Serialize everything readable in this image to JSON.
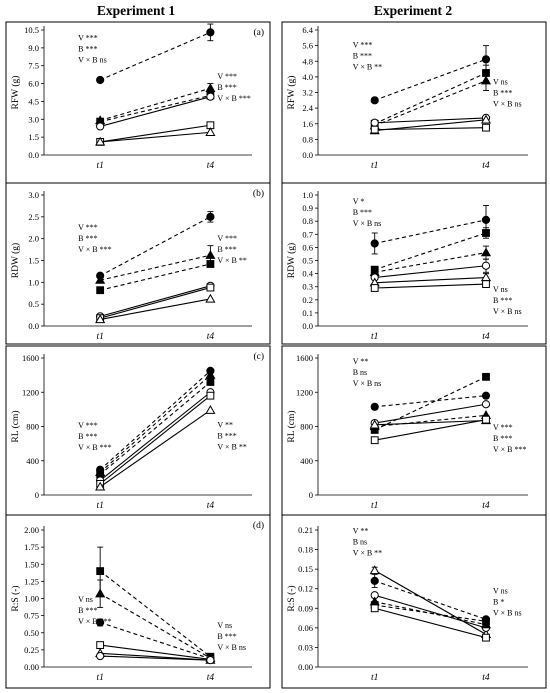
{
  "figure": {
    "columns": [
      "Experiment 1",
      "Experiment 2"
    ]
  },
  "chart_data": [
    {
      "id": "a1",
      "type": "line",
      "letter": "(a)",
      "ylabel": "RFW (g)",
      "ylim": [
        0,
        10.5
      ],
      "yticks": [
        "0.0",
        "1.5",
        "3.0",
        "4.5",
        "6.0",
        "7.5",
        "9.0",
        "10.5"
      ],
      "x": [
        "t1",
        "t4"
      ],
      "series": [
        {
          "marker": "filled-circle",
          "dashed": true,
          "values": [
            6.3,
            10.3
          ],
          "err": [
            0,
            0.7
          ]
        },
        {
          "marker": "filled-triangle",
          "dashed": true,
          "values": [
            2.9,
            5.6
          ],
          "err": [
            0,
            0.4
          ]
        },
        {
          "marker": "filled-square",
          "dashed": true,
          "values": [
            2.8,
            5.0
          ],
          "err": [
            0,
            0
          ]
        },
        {
          "marker": "open-circle",
          "dashed": false,
          "values": [
            2.4,
            4.9
          ],
          "err": [
            0,
            0
          ]
        },
        {
          "marker": "open-square",
          "dashed": false,
          "values": [
            1.1,
            2.5
          ],
          "err": [
            0,
            0
          ]
        },
        {
          "marker": "open-triangle",
          "dashed": false,
          "values": [
            1.1,
            1.9
          ],
          "err": [
            0,
            0
          ]
        }
      ],
      "stats": [
        {
          "anchor": "t1",
          "yval": 9.6,
          "lines": [
            "V ***",
            "B ***",
            "V × B ns"
          ]
        },
        {
          "anchor": "t4",
          "yval": 6.4,
          "lines": [
            "V ***",
            "B ***",
            "V × B ***"
          ]
        }
      ]
    },
    {
      "id": "a2",
      "type": "line",
      "letter": "",
      "ylabel": "RFW (g)",
      "ylim": [
        0,
        6.4
      ],
      "yticks": [
        "0.0",
        "0.8",
        "1.6",
        "2.4",
        "3.2",
        "4.0",
        "4.8",
        "5.6",
        "6.4"
      ],
      "x": [
        "t1",
        "t4"
      ],
      "series": [
        {
          "marker": "filled-circle",
          "dashed": true,
          "values": [
            2.8,
            4.9
          ],
          "err": [
            0,
            0.7
          ]
        },
        {
          "marker": "filled-square",
          "dashed": true,
          "values": [
            1.6,
            4.2
          ],
          "err": [
            0,
            0.4
          ]
        },
        {
          "marker": "filled-triangle",
          "dashed": true,
          "values": [
            1.5,
            3.8
          ],
          "err": [
            0,
            0.5
          ]
        },
        {
          "marker": "open-circle",
          "dashed": false,
          "values": [
            1.65,
            1.9
          ],
          "err": [
            0,
            0
          ]
        },
        {
          "marker": "open-triangle",
          "dashed": false,
          "values": [
            1.25,
            1.8
          ],
          "err": [
            0,
            0
          ]
        },
        {
          "marker": "open-square",
          "dashed": false,
          "values": [
            1.3,
            1.4
          ],
          "err": [
            0,
            0
          ]
        }
      ],
      "stats": [
        {
          "anchor": "t1",
          "yval": 5.5,
          "lines": [
            "V ***",
            "B ***",
            "V × B **"
          ]
        },
        {
          "anchor": "t4",
          "yval": 3.6,
          "lines": [
            "V ns",
            "B ***",
            "V × B ns"
          ]
        }
      ]
    },
    {
      "id": "b1",
      "type": "line",
      "letter": "(b)",
      "ylabel": "RDW (g)",
      "ylim": [
        0,
        3.0
      ],
      "yticks": [
        "0.0",
        "0.5",
        "1.0",
        "1.5",
        "2.0",
        "2.5",
        "3.0"
      ],
      "x": [
        "t1",
        "t4"
      ],
      "series": [
        {
          "marker": "filled-circle",
          "dashed": true,
          "values": [
            1.15,
            2.5
          ],
          "err": [
            0,
            0.12
          ]
        },
        {
          "marker": "filled-triangle",
          "dashed": true,
          "values": [
            1.05,
            1.62
          ],
          "err": [
            0,
            0.22
          ]
        },
        {
          "marker": "filled-square",
          "dashed": true,
          "values": [
            0.82,
            1.42
          ],
          "err": [
            0,
            0
          ]
        },
        {
          "marker": "open-circle",
          "dashed": false,
          "values": [
            0.22,
            0.92
          ],
          "err": [
            0,
            0
          ]
        },
        {
          "marker": "open-square",
          "dashed": false,
          "values": [
            0.18,
            0.88
          ],
          "err": [
            0,
            0
          ]
        },
        {
          "marker": "open-triangle",
          "dashed": false,
          "values": [
            0.15,
            0.62
          ],
          "err": [
            0,
            0
          ]
        }
      ],
      "stats": [
        {
          "anchor": "t1",
          "yval": 2.2,
          "lines": [
            "V ***",
            "B ***",
            "V × B ***"
          ]
        },
        {
          "anchor": "t4",
          "yval": 1.95,
          "lines": [
            "V ***",
            "B ***",
            "V × B **"
          ]
        }
      ]
    },
    {
      "id": "b2",
      "type": "line",
      "letter": "",
      "ylabel": "RDW (g)",
      "ylim": [
        0,
        1.0
      ],
      "yticks": [
        "0.0",
        "0.1",
        "0.2",
        "0.3",
        "0.4",
        "0.5",
        "0.6",
        "0.7",
        "0.8",
        "0.9",
        "1.0"
      ],
      "x": [
        "t1",
        "t4"
      ],
      "series": [
        {
          "marker": "filled-circle",
          "dashed": true,
          "values": [
            0.63,
            0.81
          ],
          "err": [
            0.08,
            0.11
          ]
        },
        {
          "marker": "filled-square",
          "dashed": true,
          "values": [
            0.43,
            0.71
          ],
          "err": [
            0,
            0.04
          ]
        },
        {
          "marker": "filled-triangle",
          "dashed": true,
          "values": [
            0.41,
            0.56
          ],
          "err": [
            0,
            0.05
          ]
        },
        {
          "marker": "open-circle",
          "dashed": false,
          "values": [
            0.37,
            0.46
          ],
          "err": [
            0,
            0.05
          ]
        },
        {
          "marker": "open-triangle",
          "dashed": false,
          "values": [
            0.33,
            0.37
          ],
          "err": [
            0,
            0.03
          ]
        },
        {
          "marker": "open-square",
          "dashed": false,
          "values": [
            0.29,
            0.32
          ],
          "err": [
            0,
            0
          ]
        }
      ],
      "stats": [
        {
          "anchor": "t1",
          "yval": 0.93,
          "lines": [
            "V *",
            "B ***",
            "V × B ns"
          ]
        },
        {
          "anchor": "t4",
          "yval": 0.26,
          "lines": [
            "V ns",
            "B ***",
            "V × B ns"
          ]
        }
      ]
    },
    {
      "id": "c1",
      "type": "line",
      "letter": "(c)",
      "ylabel": "RL (cm)",
      "ylim": [
        0,
        1600
      ],
      "yticks": [
        "0",
        "400",
        "800",
        "1200",
        "1600"
      ],
      "x": [
        "t1",
        "t4"
      ],
      "series": [
        {
          "marker": "filled-circle",
          "dashed": true,
          "values": [
            295,
            1450
          ],
          "err": [
            0,
            0
          ]
        },
        {
          "marker": "filled-triangle",
          "dashed": true,
          "values": [
            265,
            1400
          ],
          "err": [
            0,
            0
          ]
        },
        {
          "marker": "filled-square",
          "dashed": true,
          "values": [
            240,
            1320
          ],
          "err": [
            0,
            0
          ]
        },
        {
          "marker": "open-circle",
          "dashed": false,
          "values": [
            170,
            1200
          ],
          "err": [
            0,
            0
          ]
        },
        {
          "marker": "open-square",
          "dashed": false,
          "values": [
            130,
            1160
          ],
          "err": [
            0,
            0
          ]
        },
        {
          "marker": "open-triangle",
          "dashed": false,
          "values": [
            95,
            990
          ],
          "err": [
            0,
            0
          ]
        }
      ],
      "stats": [
        {
          "anchor": "t1",
          "yval": 780,
          "lines": [
            "V ***",
            "B ***",
            "V × B ***"
          ]
        },
        {
          "anchor": "t4",
          "yval": 790,
          "lines": [
            "V **",
            "B ***",
            "V × B **"
          ]
        }
      ]
    },
    {
      "id": "c2",
      "type": "line",
      "letter": "",
      "ylabel": "RL (cm)",
      "ylim": [
        0,
        1600
      ],
      "yticks": [
        "0",
        "400",
        "800",
        "1200",
        "1600"
      ],
      "x": [
        "t1",
        "t4"
      ],
      "series": [
        {
          "marker": "filled-square",
          "dashed": true,
          "values": [
            760,
            1380
          ],
          "err": [
            0,
            0
          ]
        },
        {
          "marker": "filled-circle",
          "dashed": true,
          "values": [
            1030,
            1160
          ],
          "err": [
            0,
            0
          ]
        },
        {
          "marker": "open-circle",
          "dashed": false,
          "values": [
            840,
            1060
          ],
          "err": [
            0,
            0
          ]
        },
        {
          "marker": "filled-triangle",
          "dashed": true,
          "values": [
            800,
            930
          ],
          "err": [
            0,
            0
          ]
        },
        {
          "marker": "open-triangle",
          "dashed": false,
          "values": [
            820,
            870
          ],
          "err": [
            0,
            0
          ]
        },
        {
          "marker": "open-square",
          "dashed": false,
          "values": [
            640,
            880
          ],
          "err": [
            0,
            0
          ]
        }
      ],
      "stats": [
        {
          "anchor": "t1",
          "yval": 1530,
          "lines": [
            "V **",
            "B ns",
            "V × B ns"
          ]
        },
        {
          "anchor": "t4",
          "yval": 760,
          "lines": [
            "V ***",
            "B ***",
            "V × B ***"
          ]
        }
      ]
    },
    {
      "id": "d1",
      "type": "line",
      "letter": "(d)",
      "ylabel": "R:S (-)",
      "ylim": [
        0,
        2.0
      ],
      "yticks": [
        "0.00",
        "0.25",
        "0.50",
        "0.75",
        "1.00",
        "1.25",
        "1.50",
        "1.75",
        "2.00"
      ],
      "x": [
        "t1",
        "t4"
      ],
      "series": [
        {
          "marker": "filled-square",
          "dashed": true,
          "values": [
            1.4,
            0.15
          ],
          "err": [
            0.35,
            0
          ]
        },
        {
          "marker": "filled-triangle",
          "dashed": true,
          "values": [
            1.07,
            0.13
          ],
          "err": [
            0.2,
            0
          ]
        },
        {
          "marker": "filled-circle",
          "dashed": true,
          "values": [
            0.65,
            0.12
          ],
          "err": [
            0.05,
            0
          ]
        },
        {
          "marker": "open-square",
          "dashed": false,
          "values": [
            0.32,
            0.11
          ],
          "err": [
            0,
            0
          ]
        },
        {
          "marker": "open-triangle",
          "dashed": false,
          "values": [
            0.2,
            0.1
          ],
          "err": [
            0,
            0
          ]
        },
        {
          "marker": "open-circle",
          "dashed": false,
          "values": [
            0.16,
            0.1
          ],
          "err": [
            0,
            0
          ]
        }
      ],
      "stats": [
        {
          "anchor": "t1",
          "yval": 0.95,
          "lines": [
            "V ns",
            "B ***",
            "V × B ***"
          ]
        },
        {
          "anchor": "t4",
          "yval": 0.57,
          "lines": [
            "V ns",
            "B ***",
            "V × B ns"
          ]
        }
      ]
    },
    {
      "id": "d2",
      "type": "line",
      "letter": "",
      "ylabel": "R:S (-)",
      "ylim": [
        0,
        0.21
      ],
      "yticks": [
        "0.00",
        "0.03",
        "0.06",
        "0.09",
        "0.12",
        "0.15",
        "0.18",
        "0.21"
      ],
      "x": [
        "t1",
        "t4"
      ],
      "series": [
        {
          "marker": "open-triangle",
          "dashed": false,
          "values": [
            0.148,
            0.05
          ],
          "err": [
            0.005,
            0
          ]
        },
        {
          "marker": "filled-circle",
          "dashed": true,
          "values": [
            0.132,
            0.073
          ],
          "err": [
            0.01,
            0
          ]
        },
        {
          "marker": "open-circle",
          "dashed": false,
          "values": [
            0.11,
            0.06
          ],
          "err": [
            0,
            0
          ]
        },
        {
          "marker": "filled-triangle",
          "dashed": true,
          "values": [
            0.1,
            0.065
          ],
          "err": [
            0,
            0
          ]
        },
        {
          "marker": "filled-square",
          "dashed": true,
          "values": [
            0.095,
            0.07
          ],
          "err": [
            0,
            0
          ]
        },
        {
          "marker": "open-square",
          "dashed": false,
          "values": [
            0.09,
            0.045
          ],
          "err": [
            0,
            0
          ]
        }
      ],
      "stats": [
        {
          "anchor": "t1",
          "yval": 0.205,
          "lines": [
            "V **",
            "B ns",
            "V × B **"
          ]
        },
        {
          "anchor": "t4",
          "yval": 0.113,
          "lines": [
            "V ns",
            "B *",
            "V × B ns"
          ]
        }
      ]
    }
  ]
}
